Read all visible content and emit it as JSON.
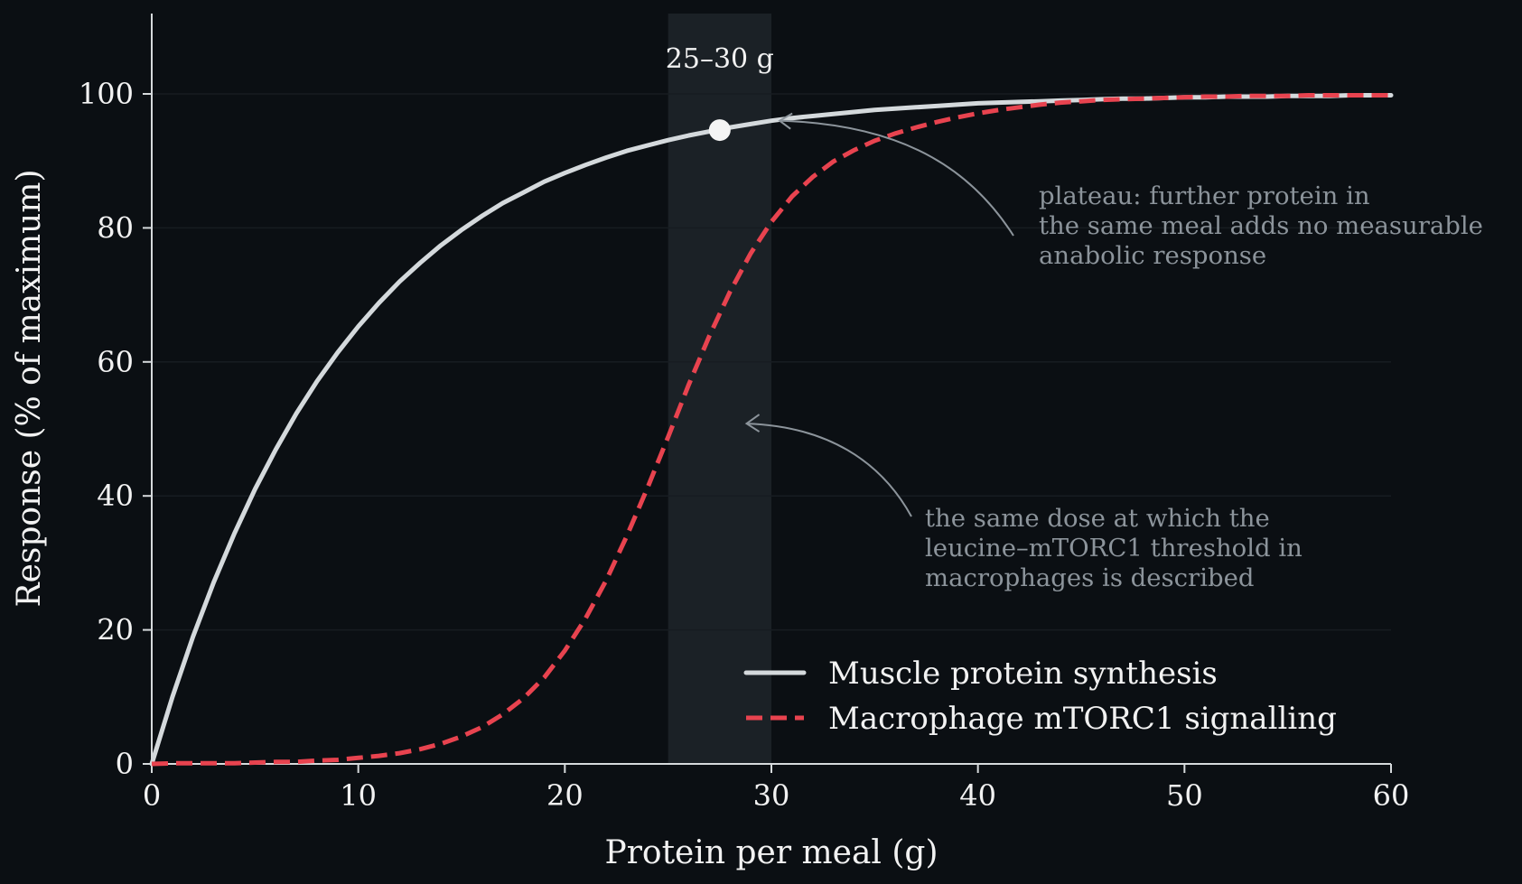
{
  "chart_data": {
    "type": "line",
    "xlabel": "Protein per meal (g)",
    "ylabel": "Response (% of maximum)",
    "xlim": [
      0,
      60
    ],
    "ylim": [
      0,
      112
    ],
    "xticks": [
      0,
      10,
      20,
      30,
      40,
      50,
      60
    ],
    "yticks": [
      0,
      20,
      40,
      60,
      80,
      100
    ],
    "grid": "horizontal",
    "legend_position": "lower-right",
    "x": [
      0,
      1,
      2,
      3,
      4,
      5,
      6,
      7,
      8,
      9,
      10,
      11,
      12,
      13,
      14,
      15,
      16,
      17,
      18,
      19,
      20,
      21,
      22,
      23,
      24,
      25,
      26,
      27,
      28,
      29,
      30,
      31,
      32,
      33,
      34,
      35,
      36,
      37,
      38,
      39,
      40,
      41,
      42,
      43,
      44,
      45,
      46,
      47,
      48,
      49,
      50,
      51,
      52,
      53,
      54,
      55,
      56,
      57,
      58,
      59,
      60
    ],
    "series": [
      {
        "name": "Muscle protein synthesis",
        "color": "#d4d9dc",
        "style": "solid",
        "values": [
          0,
          10.0,
          19.0,
          27.1,
          34.4,
          41.0,
          46.9,
          52.3,
          57.1,
          61.4,
          65.3,
          68.8,
          72.0,
          74.8,
          77.4,
          79.7,
          81.8,
          83.7,
          85.3,
          86.9,
          88.2,
          89.4,
          90.5,
          91.5,
          92.3,
          93.1,
          93.8,
          94.4,
          95.0,
          95.5,
          96.0,
          96.4,
          96.7,
          97.0,
          97.3,
          97.6,
          97.8,
          98.0,
          98.2,
          98.4,
          98.6,
          98.7,
          98.8,
          98.9,
          99.0,
          99.1,
          99.2,
          99.3,
          99.3,
          99.4,
          99.5,
          99.5,
          99.6,
          99.6,
          99.6,
          99.7,
          99.7,
          99.7,
          99.8,
          99.8,
          99.8
        ]
      },
      {
        "name": "Macrophage mTORC1 signalling",
        "color": "#e8434f",
        "style": "dashed",
        "values": [
          0.0,
          0.1,
          0.1,
          0.1,
          0.1,
          0.2,
          0.3,
          0.3,
          0.5,
          0.6,
          0.9,
          1.2,
          1.6,
          2.2,
          3.0,
          4.1,
          5.5,
          7.4,
          9.8,
          12.9,
          16.9,
          21.7,
          27.4,
          34.0,
          41.2,
          48.8,
          56.6,
          63.9,
          70.5,
          76.2,
          80.9,
          84.7,
          87.6,
          89.9,
          91.6,
          93.0,
          94.1,
          95.0,
          95.8,
          96.5,
          97.1,
          97.6,
          98.0,
          98.4,
          98.7,
          98.9,
          99.1,
          99.2,
          99.3,
          99.4,
          99.5,
          99.6,
          99.6,
          99.7,
          99.7,
          99.7,
          99.8,
          99.8,
          99.8,
          99.8,
          99.8
        ]
      }
    ],
    "highlight_band": {
      "x": [
        25,
        30
      ],
      "label": "25–30 g",
      "color": "#1b2126"
    },
    "marker_point": {
      "x": 27.5,
      "y": 94.6,
      "color": "#f4f4f4"
    },
    "annotations": [
      {
        "lines": [
          "plateau: further protein in",
          "the same meal adds no measurable",
          "anabolic response"
        ],
        "arrow_target": {
          "x": 30.4,
          "y": 96.0
        }
      },
      {
        "lines": [
          "the same dose at which the",
          "leucine–mTORC1 threshold in",
          "macrophages is described"
        ],
        "arrow_target": {
          "x": 28.8,
          "y": 50.8
        }
      }
    ],
    "colors": {
      "background": "#0b0f13",
      "axis": "#d6dadc",
      "grid": "#171c21",
      "annotation": "#8c949b"
    }
  }
}
